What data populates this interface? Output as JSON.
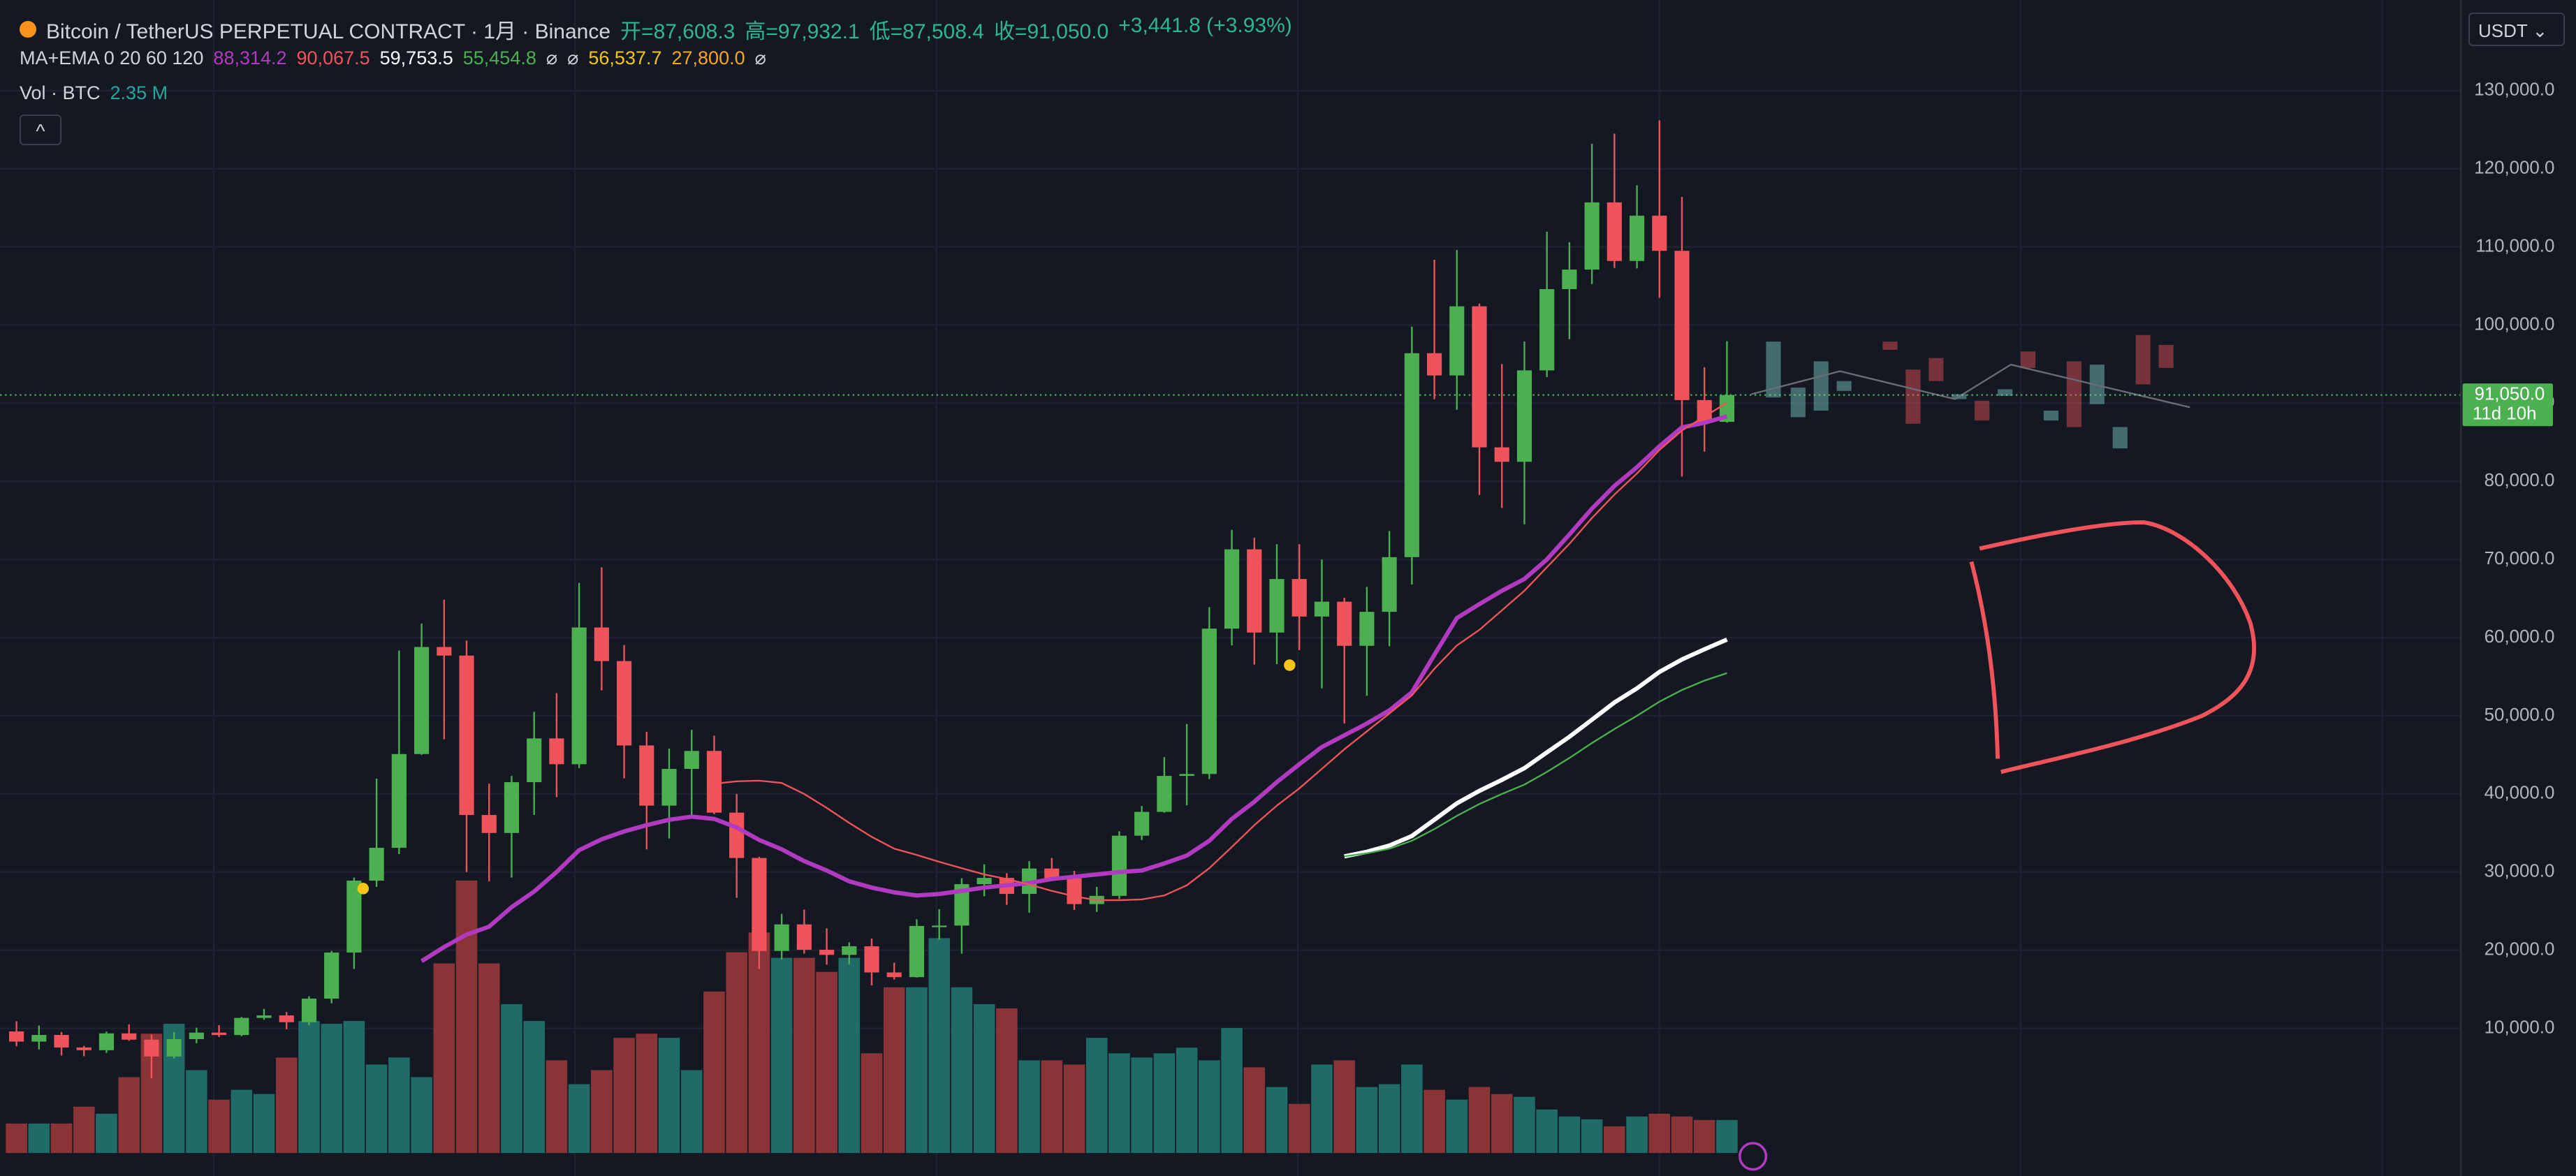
{
  "chart_data": {
    "type": "candlestick",
    "title": "Bitcoin / TetherUS PERPETUAL CONTRACT · 1月 · Binance",
    "ohlc_summary": [
      "开=87,608.3",
      "高=97,932.1",
      "低=87,508.4",
      "收=91,050.0",
      "+3,441.8 (+3.93%)"
    ],
    "indicator_label": "MA+EMA 0 20 60 120",
    "indicator_values": [
      {
        "text": "88,314.2",
        "color": "#b23ac0"
      },
      {
        "text": "90,067.5",
        "color": "#f0545a"
      },
      {
        "text": "59,753.5",
        "color": "#ffffff"
      },
      {
        "text": "55,454.8",
        "color": "#4caf50"
      },
      {
        "text": "⌀",
        "color": "#d1d4dc"
      },
      {
        "text": "⌀",
        "color": "#d1d4dc"
      },
      {
        "text": "56,537.7",
        "color": "#f5c518"
      },
      {
        "text": "27,800.0",
        "color": "#f5a623"
      },
      {
        "text": "⌀",
        "color": "#d1d4dc"
      }
    ],
    "volume_label": "Vol · BTC",
    "volume_value": "2.35 M",
    "currency": "USDT",
    "last_price_label": "91,050.0",
    "countdown": "11d 10h",
    "up_color": "#4caf50",
    "down_color": "#f0545a",
    "volume_up_color": "#1e6b68",
    "volume_down_color": "#8a3438",
    "ylim": [
      -8900,
      141600
    ],
    "yticks": [
      {
        "value": 10000,
        "label": "10,000.0"
      },
      {
        "value": 20000,
        "label": "20,000.0"
      },
      {
        "value": 30000,
        "label": "30,000.0"
      },
      {
        "value": 40000,
        "label": "40,000.0"
      },
      {
        "value": 50000,
        "label": "50,000.0"
      },
      {
        "value": 60000,
        "label": "60,000.0"
      },
      {
        "value": 70000,
        "label": "70,000.0"
      },
      {
        "value": 80000,
        "label": "80,000.0"
      },
      {
        "value": 90000,
        "label": "90,000.0"
      },
      {
        "value": 100000,
        "label": "100,000.0"
      },
      {
        "value": 110000,
        "label": "110,000.0"
      },
      {
        "value": 120000,
        "label": "120,000.0"
      },
      {
        "value": 130000,
        "label": "130,000.0"
      }
    ],
    "volume_lim": [
      0,
      20
    ],
    "open": [
      9600,
      8300,
      9150,
      7550,
      7200,
      9350,
      8550,
      6400,
      8620,
      9450,
      9140,
      11330,
      11650,
      10780,
      13800,
      19700,
      28900,
      33100,
      45100,
      58800,
      57700,
      37300,
      35000,
      41500,
      47100,
      43800,
      61300,
      57000,
      46200,
      38500,
      43200,
      45500,
      37600,
      31800,
      19900,
      23300,
      20050,
      19400,
      20500,
      17150,
      16550,
      23100,
      23150,
      28450,
      29250,
      27200,
      30450,
      29200,
      25900,
      26950,
      34650,
      37700,
      42300,
      42550,
      61150,
      71300,
      60650,
      67500,
      62700,
      64600,
      58950,
      63300,
      70300,
      96400,
      93550,
      102400,
      84350,
      82500,
      94200,
      104600,
      107100,
      115700,
      108200,
      114000,
      109500,
      90400,
      87608.3
    ],
    "high": [
      10900,
      10350,
      9530,
      7750,
      9580,
      10500,
      9200,
      9500,
      10080,
      10400,
      11450,
      12480,
      12080,
      14100,
      19900,
      29300,
      41950,
      58350,
      61800,
      64850,
      59600,
      41300,
      42300,
      50500,
      52900,
      67000,
      69000,
      59050,
      47950,
      45800,
      48200,
      47450,
      40000,
      31950,
      24650,
      25200,
      22800,
      21000,
      21500,
      18400,
      23950,
      25250,
      29200,
      31000,
      29850,
      31400,
      31800,
      30150,
      28100,
      35200,
      38450,
      44700,
      48950,
      63900,
      73800,
      72800,
      71950,
      71950,
      70000,
      65100,
      66500,
      73650,
      99800,
      108350,
      109600,
      102750,
      95000,
      97900,
      111950,
      110600,
      123200,
      124500,
      117900,
      126200,
      116400,
      94600,
      97932.1
    ],
    "low": [
      7700,
      7300,
      6520,
      6430,
      6860,
      8400,
      3600,
      6150,
      8100,
      8900,
      8990,
      11100,
      9880,
      10370,
      13200,
      17600,
      28100,
      32300,
      45000,
      47000,
      30000,
      28800,
      29300,
      37300,
      39600,
      43300,
      53250,
      42000,
      32900,
      34300,
      37150,
      37400,
      26700,
      17600,
      18800,
      19550,
      18150,
      18200,
      15500,
      16250,
      16500,
      21350,
      19550,
      26900,
      25800,
      24800,
      28850,
      25150,
      24900,
      26550,
      34100,
      37600,
      38550,
      41900,
      59000,
      56550,
      56600,
      58400,
      53500,
      49000,
      52550,
      58900,
      66800,
      90500,
      89150,
      78250,
      76600,
      74500,
      93350,
      98200,
      105250,
      107300,
      107250,
      103500,
      80600,
      83800,
      87508.4
    ],
    "close": [
      8300,
      9150,
      7550,
      7200,
      9350,
      8550,
      6400,
      8620,
      9450,
      9140,
      11330,
      11650,
      10780,
      13800,
      19700,
      28900,
      33100,
      45100,
      58800,
      57700,
      37300,
      35000,
      41500,
      47100,
      43800,
      61300,
      57000,
      46200,
      38500,
      43200,
      45500,
      37600,
      31800,
      19900,
      23300,
      20050,
      19400,
      20500,
      17150,
      16550,
      23100,
      23150,
      28450,
      29250,
      27200,
      30450,
      29200,
      25900,
      26950,
      34650,
      37700,
      42300,
      42550,
      61150,
      71300,
      60650,
      67500,
      62700,
      64600,
      58950,
      63300,
      70300,
      96400,
      93550,
      102400,
      84350,
      82500,
      94200,
      104600,
      107100,
      115700,
      108200,
      114000,
      109500,
      90400,
      87608.3,
      91050
    ],
    "volume": [
      2.1,
      2.1,
      2.1,
      3.3,
      2.8,
      5.4,
      8.5,
      9.2,
      5.9,
      3.8,
      4.5,
      4.2,
      6.8,
      9.4,
      9.2,
      9.4,
      6.3,
      6.8,
      5.4,
      13.5,
      19.4,
      13.5,
      10.6,
      9.4,
      6.6,
      4.9,
      5.9,
      8.2,
      8.5,
      8.2,
      5.9,
      11.5,
      14.3,
      15.7,
      13.9,
      13.9,
      12.9,
      13.9,
      7.1,
      11.8,
      11.8,
      15.3,
      11.8,
      10.6,
      10.3,
      6.6,
      6.6,
      6.3,
      8.2,
      7.1,
      6.8,
      7.1,
      7.5,
      6.6,
      8.9,
      6.1,
      4.7,
      3.5,
      6.3,
      6.6,
      4.7,
      4.9,
      6.3,
      4.5,
      3.8,
      4.7,
      4.2,
      4.0,
      3.1,
      2.6,
      2.4,
      1.9,
      2.6,
      2.8,
      2.6,
      2.35,
      2.35
    ],
    "lines": [
      {
        "color": "#b23ac0",
        "width": 2.6,
        "values": [
          null,
          null,
          null,
          null,
          null,
          null,
          null,
          null,
          null,
          null,
          null,
          null,
          null,
          null,
          null,
          null,
          null,
          null,
          18600,
          20400,
          22000,
          23000,
          25500,
          27500,
          30000,
          32800,
          34200,
          35200,
          36000,
          36700,
          37100,
          36800,
          35700,
          34100,
          32900,
          31400,
          30200,
          28800,
          28000,
          27400,
          27000,
          27200,
          27600,
          28000,
          28300,
          28600,
          29100,
          29400,
          29700,
          30000,
          30200,
          31100,
          32100,
          34000,
          36800,
          39000,
          41500,
          43800,
          46000,
          47500,
          49000,
          50700,
          53000,
          57800,
          62500,
          64300,
          66000,
          67500,
          70000,
          73200,
          76500,
          79400,
          81800,
          84500,
          86900,
          87500,
          88314.2
        ]
      },
      {
        "color": "#f0545a",
        "width": 1,
        "values": [
          null,
          null,
          null,
          null,
          null,
          null,
          null,
          null,
          null,
          null,
          null,
          null,
          null,
          null,
          null,
          null,
          null,
          null,
          null,
          null,
          null,
          null,
          null,
          null,
          null,
          null,
          null,
          null,
          null,
          null,
          null,
          41300,
          41600,
          41700,
          41400,
          40000,
          38200,
          36300,
          34500,
          33000,
          32200,
          31300,
          30500,
          29700,
          29100,
          28400,
          27600,
          26900,
          26400,
          26400,
          26500,
          27000,
          28300,
          30500,
          33200,
          36000,
          38500,
          40700,
          43200,
          45700,
          48000,
          50300,
          52600,
          56000,
          59000,
          61000,
          63500,
          66000,
          69000,
          72000,
          75300,
          78300,
          81000,
          84000,
          86500,
          88300,
          90067.5
        ]
      },
      {
        "color": "#ffffff",
        "width": 2.6,
        "values": [
          null,
          null,
          null,
          null,
          null,
          null,
          null,
          null,
          null,
          null,
          null,
          null,
          null,
          null,
          null,
          null,
          null,
          null,
          null,
          null,
          null,
          null,
          null,
          null,
          null,
          null,
          null,
          null,
          null,
          null,
          null,
          null,
          null,
          null,
          null,
          null,
          null,
          null,
          null,
          null,
          null,
          null,
          null,
          null,
          null,
          null,
          null,
          null,
          null,
          null,
          null,
          null,
          null,
          null,
          null,
          null,
          null,
          null,
          null,
          32000,
          32600,
          33400,
          34600,
          36700,
          38800,
          40400,
          41800,
          43300,
          45300,
          47300,
          49500,
          51700,
          53500,
          55600,
          57200,
          58500,
          59753.5
        ]
      },
      {
        "color": "#4caf50",
        "width": 1,
        "values": [
          null,
          null,
          null,
          null,
          null,
          null,
          null,
          null,
          null,
          null,
          null,
          null,
          null,
          null,
          null,
          null,
          null,
          null,
          null,
          null,
          null,
          null,
          null,
          null,
          null,
          null,
          null,
          null,
          null,
          null,
          null,
          null,
          null,
          null,
          null,
          null,
          null,
          null,
          null,
          null,
          null,
          null,
          null,
          null,
          null,
          null,
          null,
          null,
          null,
          null,
          null,
          null,
          null,
          null,
          null,
          null,
          null,
          null,
          null,
          32000,
          32400,
          33000,
          34000,
          35500,
          37200,
          38700,
          40000,
          41200,
          42800,
          44600,
          46500,
          48300,
          50000,
          51800,
          53300,
          54500,
          55454.8
        ]
      }
    ]
  }
}
